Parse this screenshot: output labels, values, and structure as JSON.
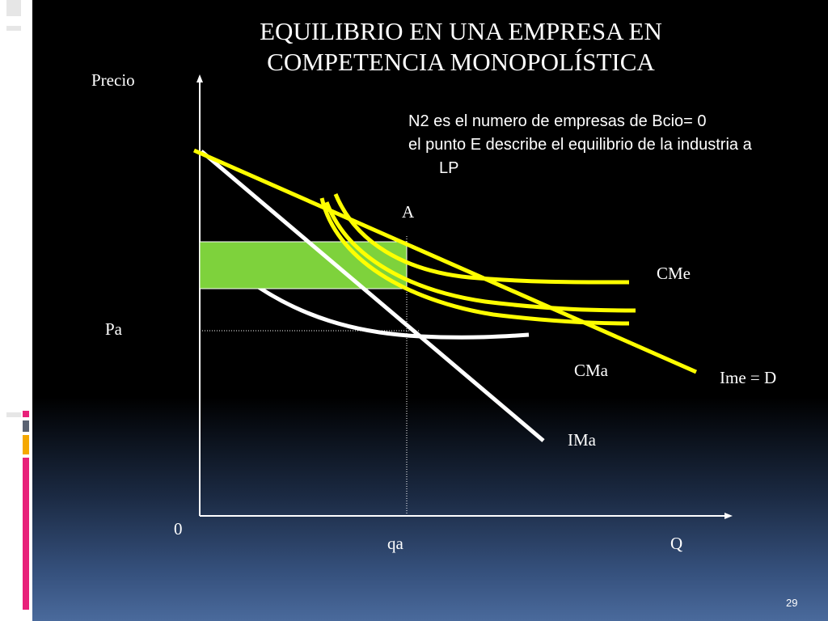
{
  "slide": {
    "title_line1": "EQUILIBRIO EN UNA EMPRESA EN",
    "title_line2": "COMPETENCIA MONOPOLÍSTICA",
    "note_line1": "N2 es el numero de empresas de Bcio= 0",
    "note_line2": "el punto E describe el equilibrio de la industria a",
    "note_line3": "LP",
    "page_number": "29"
  },
  "diagram": {
    "y_axis_label": "Precio",
    "x_axis_label": "Q",
    "origin_label": "0",
    "price_label": "Pa",
    "quantity_label": "qa",
    "point_label": "A",
    "curves": {
      "cme": "CMe",
      "cma": "CMa",
      "ime_d": "Ime = D",
      "ima": "IMa"
    }
  },
  "colors": {
    "background": "#000000",
    "curve_yellow": "#ffff00",
    "curve_white": "#ffffff",
    "profit_rect": "#7ed23c",
    "accent_pink": "#e8217a",
    "accent_orange": "#f5a800",
    "accent_gray": "#5a6272"
  }
}
